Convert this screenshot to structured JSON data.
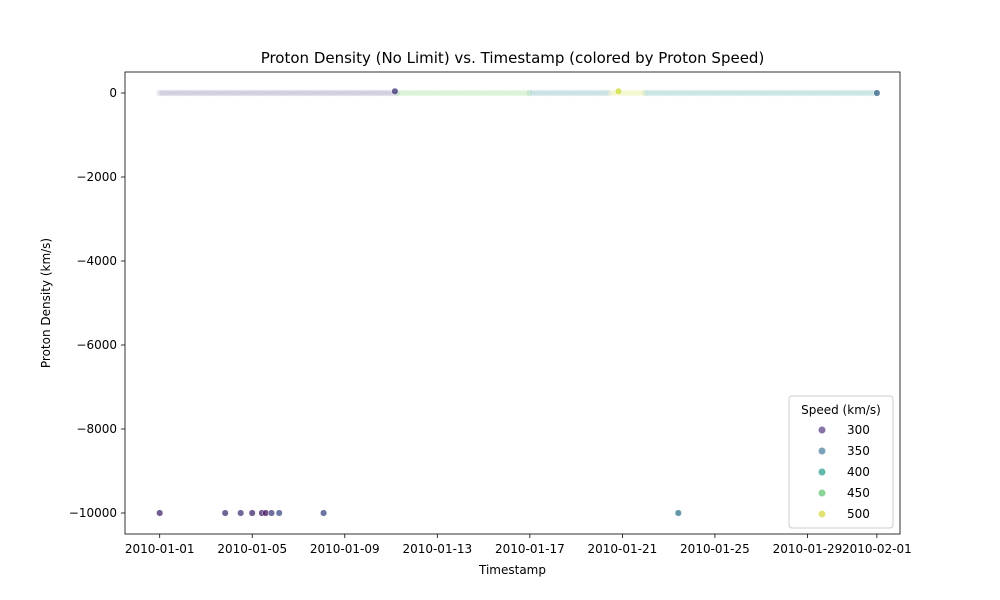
{
  "chart_data": {
    "type": "scatter",
    "title": "Proton Density (No Limit) vs. Timestamp (colored by Proton Speed)",
    "xlabel": "Timestamp",
    "ylabel": "Proton Density (km/s)",
    "x_range": [
      "2009-12-30T12:00",
      "2010-02-02T00:00"
    ],
    "ylim": [
      -10500,
      500
    ],
    "x_ticks": [
      "2010-01-01",
      "2010-01-05",
      "2010-01-09",
      "2010-01-13",
      "2010-01-17",
      "2010-01-21",
      "2010-01-25",
      "2010-01-29",
      "2010-02-01"
    ],
    "y_ticks": [
      0,
      -2000,
      -4000,
      -6000,
      -8000,
      -10000
    ],
    "y_tick_labels": [
      "0",
      "−2000",
      "−4000",
      "−6000",
      "−8000",
      "−10000"
    ],
    "grid": false,
    "legend": {
      "title": "Speed (km/s)",
      "placement": "lower-right",
      "entries": [
        {
          "label": "300",
          "color": "#6c4f92"
        },
        {
          "label": "350",
          "color": "#5a8ba8"
        },
        {
          "label": "400",
          "color": "#3aa896"
        },
        {
          "label": "450",
          "color": "#6cc97c"
        },
        {
          "label": "500",
          "color": "#d8dc50"
        }
      ]
    },
    "colormap": "viridis",
    "speed_range": [
      260,
      520
    ],
    "band": {
      "y": 0,
      "segments": [
        {
          "from": "2010-01-01T00:00",
          "to": "2010-01-11T06:00",
          "speed": 300
        },
        {
          "from": "2010-01-11T06:00",
          "to": "2010-01-17T00:00",
          "speed": 460
        },
        {
          "from": "2010-01-17T00:00",
          "to": "2010-01-20T12:00",
          "speed": 380
        },
        {
          "from": "2010-01-20T12:00",
          "to": "2010-01-22T00:00",
          "speed": 500
        },
        {
          "from": "2010-01-22T00:00",
          "to": "2010-02-01T00:00",
          "speed": 390
        }
      ]
    },
    "points": [
      {
        "x": "2010-01-01T00:00",
        "y": -10000,
        "speed": 290
      },
      {
        "x": "2010-01-03T20:00",
        "y": -10000,
        "speed": 300
      },
      {
        "x": "2010-01-04T12:00",
        "y": -10000,
        "speed": 305
      },
      {
        "x": "2010-01-05T00:00",
        "y": -10000,
        "speed": 290
      },
      {
        "x": "2010-01-05T10:00",
        "y": -10000,
        "speed": 285
      },
      {
        "x": "2010-01-05T14:00",
        "y": -10000,
        "speed": 275
      },
      {
        "x": "2010-01-05T20:00",
        "y": -10000,
        "speed": 310
      },
      {
        "x": "2010-01-06T04:00",
        "y": -10000,
        "speed": 320
      },
      {
        "x": "2010-01-08T02:00",
        "y": -10000,
        "speed": 315
      },
      {
        "x": "2010-01-23T10:00",
        "y": -10000,
        "speed": 360
      },
      {
        "x": "2010-02-01T00:00",
        "y": 0,
        "speed": 340
      },
      {
        "x": "2010-01-11T04:00",
        "y": 40,
        "speed": 300
      },
      {
        "x": "2010-01-20T20:00",
        "y": 40,
        "speed": 500
      }
    ]
  }
}
